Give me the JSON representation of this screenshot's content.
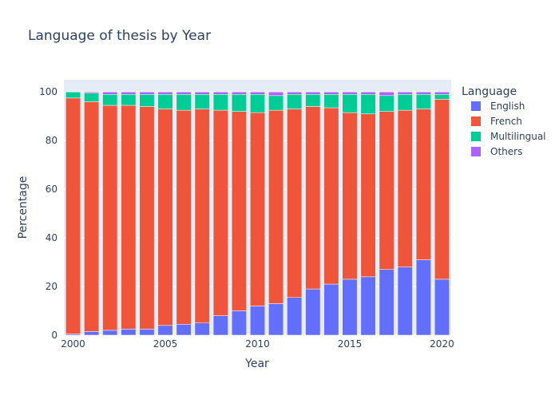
{
  "chart_data": {
    "type": "bar",
    "stacked": true,
    "title": "Language of thesis by Year",
    "xlabel": "Year",
    "ylabel": "Percentage",
    "ylim": [
      0,
      105
    ],
    "x_ticks": [
      2000,
      2005,
      2010,
      2015,
      2020
    ],
    "y_ticks": [
      0,
      20,
      40,
      60,
      80,
      100
    ],
    "grid": true,
    "legend": {
      "title": "Language",
      "placement": "right"
    },
    "x": [
      2000,
      2001,
      2002,
      2003,
      2004,
      2005,
      2006,
      2007,
      2008,
      2009,
      2010,
      2011,
      2012,
      2013,
      2014,
      2015,
      2016,
      2017,
      2018,
      2019,
      2020
    ],
    "series": [
      {
        "name": "English",
        "color": "#636efa",
        "values": [
          0.5,
          1.5,
          2.0,
          2.5,
          2.5,
          4.0,
          4.5,
          5.0,
          8.0,
          10.0,
          12.0,
          13.0,
          15.5,
          19.0,
          21.0,
          23.0,
          24.0,
          27.0,
          28.0,
          31.0,
          23.0
        ]
      },
      {
        "name": "French",
        "color": "#ef553b",
        "values": [
          97.0,
          94.5,
          92.5,
          92.0,
          91.5,
          89.0,
          88.0,
          88.0,
          84.5,
          82.0,
          79.5,
          79.5,
          77.5,
          75.0,
          72.5,
          68.5,
          67.0,
          65.0,
          64.5,
          62.0,
          74.0
        ]
      },
      {
        "name": "Multilingual",
        "color": "#00cc96",
        "values": [
          2.5,
          3.5,
          4.5,
          4.5,
          5.0,
          6.0,
          6.5,
          6.0,
          6.5,
          7.0,
          7.5,
          6.0,
          6.0,
          5.0,
          5.5,
          7.5,
          8.0,
          6.5,
          6.5,
          6.0,
          2.0
        ]
      },
      {
        "name": "Others",
        "color": "#ab63fa",
        "values": [
          0.0,
          0.5,
          1.0,
          1.0,
          1.0,
          1.0,
          1.0,
          1.0,
          1.0,
          1.0,
          1.0,
          1.5,
          1.0,
          1.0,
          1.0,
          1.0,
          1.0,
          1.5,
          1.0,
          1.0,
          1.0
        ]
      }
    ]
  }
}
